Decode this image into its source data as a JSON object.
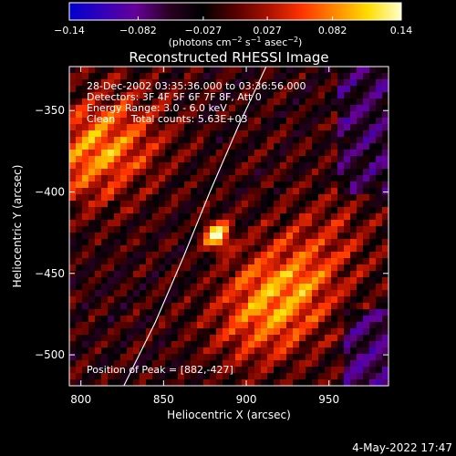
{
  "chart_data": {
    "type": "heatmap",
    "title": "Reconstructed RHESSI Image",
    "xlabel": "Heliocentric X (arcsec)",
    "ylabel": "Heliocentric Y (arcsec)",
    "xlim": [
      793,
      986
    ],
    "ylim": [
      -519,
      -323
    ],
    "x_ticks": [
      800,
      850,
      900,
      950
    ],
    "x_tick_labels": [
      "800",
      "850",
      "900",
      "950"
    ],
    "y_ticks": [
      -350,
      -400,
      -450,
      -500
    ],
    "y_tick_labels": [
      "−350",
      "−400",
      "−450",
      "−500"
    ],
    "colorbar": {
      "range": [
        -0.14,
        0.14
      ],
      "ticks": [
        -0.14,
        -0.082,
        -0.027,
        0.027,
        0.082,
        0.14
      ],
      "tick_labels": [
        "−0.14",
        "−0.082",
        "−0.027",
        "0.027",
        "0.082",
        "0.14"
      ],
      "unit_prefix": "(photons cm",
      "unit_exp1": "−2",
      "unit_mid1": " s",
      "unit_exp2": "−1",
      "unit_mid2": " asec",
      "unit_exp3": "−2",
      "unit_suffix": ")",
      "colors": [
        "#0000cc",
        "#3300bb",
        "#660099",
        "#2a0022",
        "#000000",
        "#550000",
        "#aa1100",
        "#ff3300",
        "#ff8800",
        "#ffdd00",
        "#ffffcc"
      ]
    },
    "annotations": [
      "28-Dec-2002 03:35:36.000 to 03:36:56.000",
      "Detectors: 3F 4F 5F 6F 7F 8F, Att 0",
      "Energy Range: 3.0 - 6.0 keV",
      "Clean     Total counts: 5.63E+03"
    ],
    "peak_label": "Position of Peak = [882,-427]",
    "peak": {
      "x": 882,
      "y": -427
    },
    "bright_regions": [
      {
        "x": 882,
        "y": -427,
        "level": 0.14
      },
      {
        "x": 800,
        "y": -380,
        "level": 0.07
      },
      {
        "x": 825,
        "y": -365,
        "level": 0.06
      },
      {
        "x": 925,
        "y": -460,
        "level": 0.08
      },
      {
        "x": 905,
        "y": -480,
        "level": 0.06
      },
      {
        "x": 950,
        "y": -430,
        "level": 0.04
      }
    ],
    "limb_curve": [
      [
        826,
        -519
      ],
      [
        845,
        -480
      ],
      [
        862,
        -440
      ],
      [
        878,
        -400
      ],
      [
        895,
        -360
      ],
      [
        912,
        -323
      ]
    ]
  },
  "footer": {
    "date": "4-May-2022 17:47"
  }
}
